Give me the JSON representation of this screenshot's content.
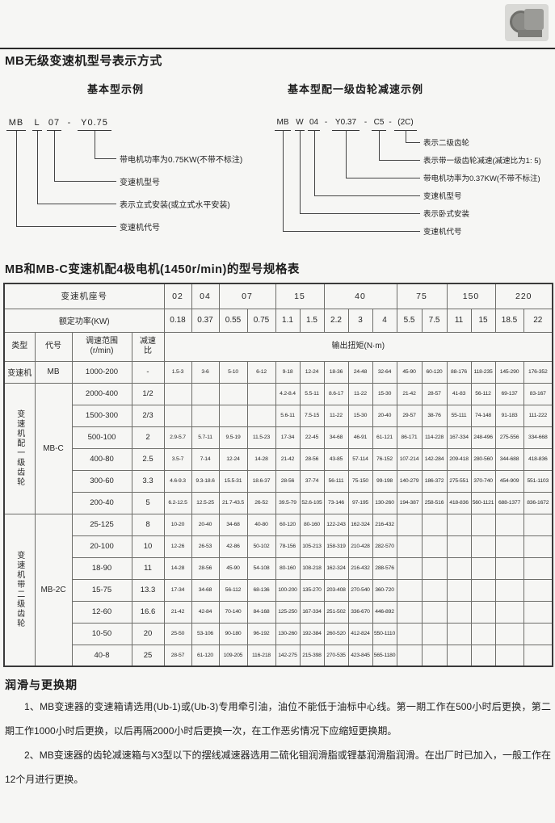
{
  "page": {
    "section1_title": "MB无级变速机型号表示方式",
    "table_title": "MB和MB-C变速机配4极电机(1450r/min)的型号规格表",
    "lubrication_title": "润滑与更换期",
    "lubrication_paragraphs": [
      "1、MB变速器的变速箱请选用(Ub-1)或(Ub-3)专用牵引油，油位不能低于油标中心线。第一期工作在500小时后更换，第二期工作1000小时后更换，以后再隔2000小时后更换一次，在工作恶劣情况下应缩短更换期。",
      "2、MB变速器的齿轮减速箱与X3型以下的摆线减速器选用二硫化钼润滑脂或锂基润滑脂润滑。在出厂时已加入，一般工作在12个月进行更换。"
    ]
  },
  "diagrams": {
    "basic": {
      "heading": "基本型示例",
      "code_segments": [
        "MB",
        "L",
        "07",
        "-",
        "Y0.75"
      ],
      "labels": [
        "带电机功率为0.75KW(不带不标注)",
        "变速机型号",
        "表示立式安装(或立式水平安装)",
        "变速机代号"
      ]
    },
    "geared": {
      "heading": "基本型配一级齿轮减速示例",
      "code_segments": [
        "MB",
        "W",
        "04",
        "-",
        "Y0.37",
        "-",
        "C5",
        "-",
        "(2C)"
      ],
      "labels": [
        "表示二级齿轮",
        "表示带一级齿轮减速(减速比为1: 5)",
        "带电机功率为0.37KW(不带不标注)",
        "变速机型号",
        "表示卧式安装",
        "变速机代号"
      ]
    }
  },
  "table": {
    "frame_row_label": "变速机座号",
    "power_row_label": "额定功率(KW)",
    "frame_sizes": [
      {
        "label": "02",
        "span": 1
      },
      {
        "label": "04",
        "span": 1
      },
      {
        "label": "07",
        "span": 2
      },
      {
        "label": "15",
        "span": 2
      },
      {
        "label": "40",
        "span": 3
      },
      {
        "label": "75",
        "span": 2
      },
      {
        "label": "150",
        "span": 2
      },
      {
        "label": "220",
        "span": 2
      }
    ],
    "powers": [
      "0.18",
      "0.37",
      "0.55",
      "0.75",
      "1.1",
      "1.5",
      "2.2",
      "3",
      "4",
      "5.5",
      "7.5",
      "11",
      "15",
      "18.5",
      "22"
    ],
    "col_headers": {
      "type": "类型",
      "code": "代号",
      "speed_range": "调速范围\n(r/min)",
      "ratio": "减速\n比",
      "torque": "输出扭矩(N·m)"
    },
    "groups": [
      {
        "type_label": "变速机",
        "code": "MB",
        "vertical": false,
        "rows": [
          {
            "range": "1000-200",
            "ratio": "-",
            "values": [
              "1.5-3",
              "3-6",
              "5-10",
              "6-12",
              "9-18",
              "12-24",
              "18-36",
              "24-48",
              "32-64",
              "45-90",
              "60-120",
              "88-176",
              "118-235",
              "145-290",
              "176-352"
            ]
          }
        ]
      },
      {
        "type_label": "变速机配一级齿轮",
        "code": "MB-C",
        "vertical": true,
        "rows": [
          {
            "range": "2000-400",
            "ratio": "1/2",
            "values": [
              "",
              "",
              "",
              "",
              "4.2-8.4",
              "5.5-11",
              "8.6-17",
              "11-22",
              "15-30",
              "21-42",
              "28-57",
              "41-83",
              "56-112",
              "69-137",
              "83-167"
            ]
          },
          {
            "range": "1500-300",
            "ratio": "2/3",
            "values": [
              "",
              "",
              "",
              "",
              "5.6-11",
              "7.5-15",
              "11-22",
              "15-30",
              "20-40",
              "29-57",
              "38-76",
              "55-111",
              "74-148",
              "91-183",
              "111-222"
            ]
          },
          {
            "range": "500-100",
            "ratio": "2",
            "values": [
              "2.9-5.7",
              "5.7-11",
              "9.5-19",
              "11.5-23",
              "17-34",
              "22-45",
              "34-68",
              "46-91",
              "61-121",
              "86-171",
              "114-228",
              "167-334",
              "248-496",
              "275-556",
              "334-668"
            ]
          },
          {
            "range": "400-80",
            "ratio": "2.5",
            "values": [
              "3.5-7",
              "7-14",
              "12-24",
              "14-28",
              "21-42",
              "28-56",
              "43-85",
              "57-114",
              "76-152",
              "107-214",
              "142-284",
              "209-418",
              "280-560",
              "344-688",
              "418-836"
            ]
          },
          {
            "range": "300-60",
            "ratio": "3.3",
            "values": [
              "4.6-9.3",
              "9.3-18.6",
              "15.5-31",
              "18.6-37",
              "28-56",
              "37-74",
              "56-111",
              "75-150",
              "99-198",
              "140-279",
              "186-372",
              "275-551",
              "370-740",
              "454-909",
              "551-1103"
            ]
          },
          {
            "range": "200-40",
            "ratio": "5",
            "values": [
              "6.2-12.5",
              "12.5-25",
              "21.7-43.5",
              "26-52",
              "39.5-79",
              "52.6-105",
              "73-146",
              "97-195",
              "130-260",
              "194-387",
              "258-516",
              "418-836",
              "560-1121",
              "688-1377",
              "836-1672"
            ]
          }
        ]
      },
      {
        "type_label": "变速机带二级齿轮",
        "code": "MB-2C",
        "vertical": true,
        "rows": [
          {
            "range": "25-125",
            "ratio": "8",
            "values": [
              "10-20",
              "20-40",
              "34-68",
              "40-80",
              "60-120",
              "80-160",
              "122-243",
              "162-324",
              "216-432",
              "",
              "",
              "",
              "",
              "",
              ""
            ]
          },
          {
            "range": "20-100",
            "ratio": "10",
            "values": [
              "12-26",
              "26-53",
              "42-86",
              "50-102",
              "78-156",
              "105-213",
              "158-319",
              "210-428",
              "282-570",
              "",
              "",
              "",
              "",
              "",
              ""
            ]
          },
          {
            "range": "18-90",
            "ratio": "11",
            "values": [
              "14-28",
              "28-56",
              "45-90",
              "54-108",
              "80-160",
              "108-218",
              "162-324",
              "216-432",
              "288-576",
              "",
              "",
              "",
              "",
              "",
              ""
            ]
          },
          {
            "range": "15-75",
            "ratio": "13.3",
            "values": [
              "17-34",
              "34-68",
              "56-112",
              "68-136",
              "100-200",
              "135-270",
              "203-408",
              "270-540",
              "360-720",
              "",
              "",
              "",
              "",
              "",
              ""
            ]
          },
          {
            "range": "12-60",
            "ratio": "16.6",
            "values": [
              "21-42",
              "42-84",
              "70-140",
              "84-168",
              "125-250",
              "167-334",
              "251-502",
              "336-670",
              "446-892",
              "",
              "",
              "",
              "",
              "",
              ""
            ]
          },
          {
            "range": "10-50",
            "ratio": "20",
            "values": [
              "25-50",
              "53-106",
              "90-180",
              "96-192",
              "130-260",
              "192-384",
              "260-520",
              "412-824",
              "550-1110",
              "",
              "",
              "",
              "",
              "",
              ""
            ]
          },
          {
            "range": "40-8",
            "ratio": "25",
            "values": [
              "28-57",
              "61-120",
              "109-205",
              "116-218",
              "142-275",
              "215-398",
              "270-535",
              "423-845",
              "565-1180",
              "",
              "",
              "",
              "",
              "",
              ""
            ]
          }
        ]
      }
    ]
  }
}
